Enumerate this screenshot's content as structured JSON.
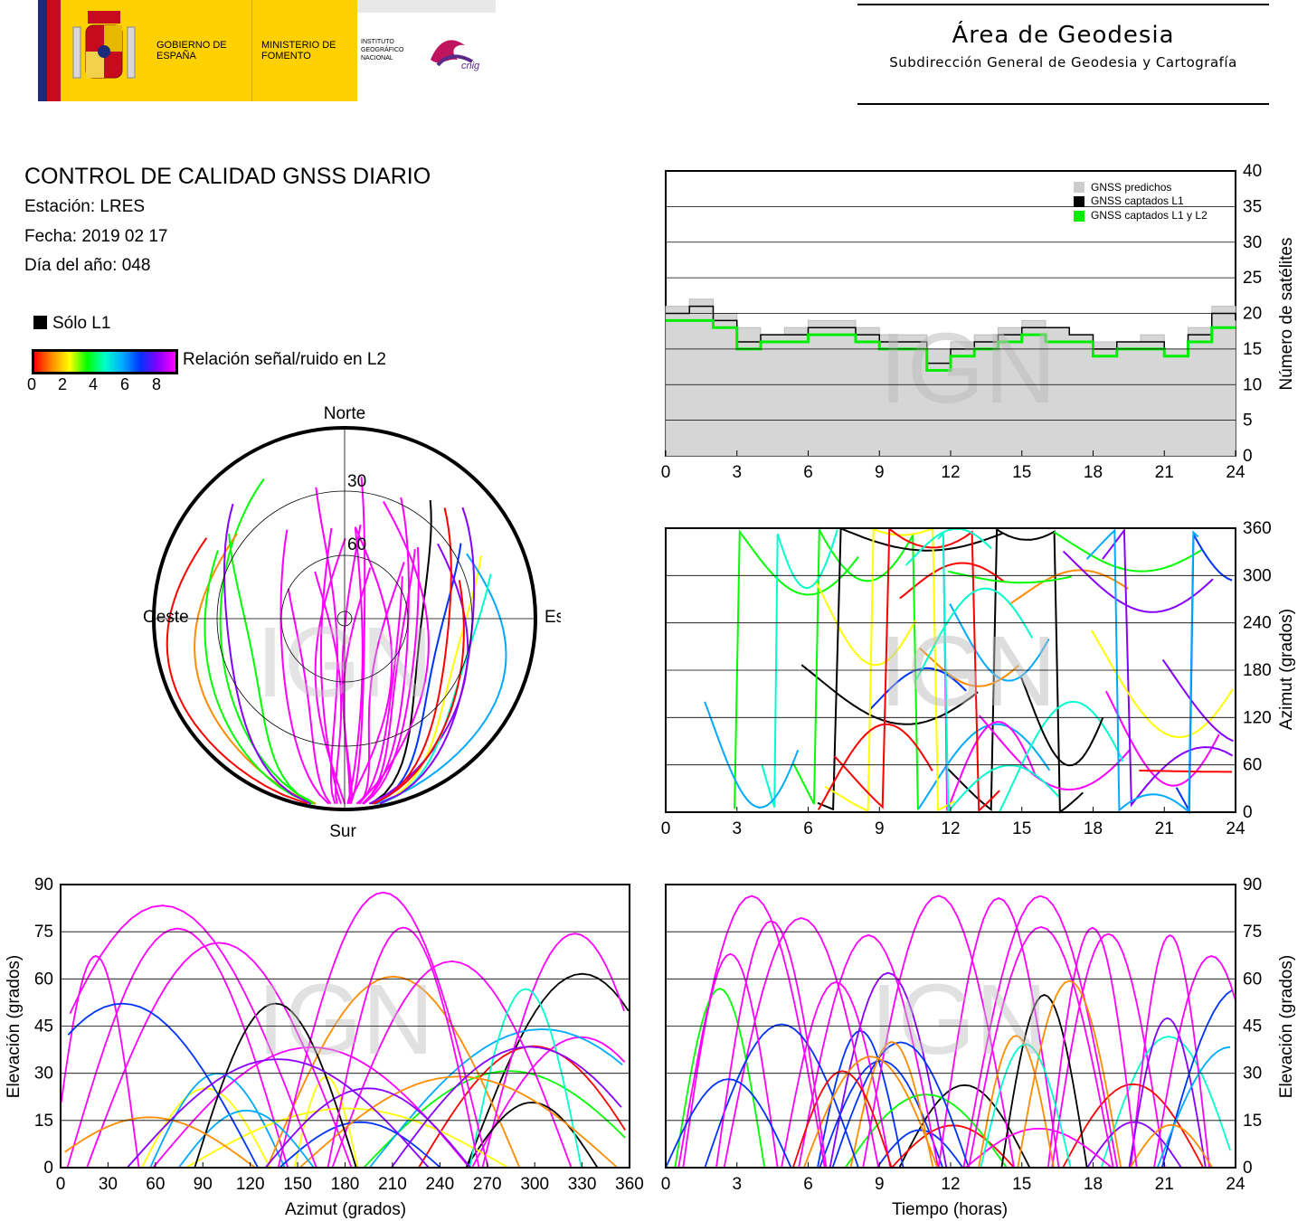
{
  "header": {
    "logos": {
      "gobierno": "GOBIERNO DE ESPAÑA",
      "ministerio": "MINISTERIO DE FOMENTO",
      "instituto": "INSTITUTO GEOGRÁFICO NACIONAL",
      "cnig": "cnig"
    },
    "area_title": "Área de Geodesia",
    "area_subtitle": "Subdirección General de Geodesia y Cartografía"
  },
  "report": {
    "title": "CONTROL DE CALIDAD GNSS DIARIO",
    "station": "Estación: LRES",
    "date": "Fecha: 2019 02 17",
    "doy": "Día del año: 048"
  },
  "legend": {
    "l1_only": "Sólo L1",
    "snr_label": "Relación señal/ruido en L2",
    "snr_ticks": [
      "0",
      "2",
      "4",
      "6",
      "8"
    ],
    "snr_colors": [
      "#ff0000",
      "#ff8c00",
      "#ffff00",
      "#00ff00",
      "#00ffcc",
      "#00aaff",
      "#0033ff",
      "#8800ff",
      "#ff00ff"
    ]
  },
  "watermark": "IGN",
  "chart_data": [
    {
      "type": "polar-skyplot",
      "directions": {
        "north": "Norte",
        "south": "Sur",
        "east": "Este",
        "west": "Oeste"
      },
      "ring_labels": [
        "30",
        "60"
      ],
      "elevation_rings": [
        0,
        30,
        60,
        90
      ]
    },
    {
      "type": "area",
      "ylabel": "Número de satélites",
      "ylim": [
        0,
        40
      ],
      "yticks": [
        "0",
        "5",
        "10",
        "15",
        "20",
        "25",
        "30",
        "35",
        "40"
      ],
      "xlim": [
        0,
        24
      ],
      "xticks": [
        "0",
        "3",
        "6",
        "9",
        "12",
        "15",
        "18",
        "21",
        "24"
      ],
      "legend": [
        "GNSS predichos",
        "GNSS captados L1",
        "GNSS captados L1 y L2"
      ],
      "legend_colors": [
        "#cccccc",
        "#000000",
        "#00ee00"
      ],
      "series": [
        {
          "name": "GNSS predichos",
          "x": [
            0,
            1,
            2,
            3,
            4,
            5,
            6,
            7,
            8,
            9,
            10,
            11,
            12,
            13,
            14,
            15,
            16,
            17,
            18,
            19,
            20,
            21,
            22,
            23,
            24
          ],
          "values": [
            21,
            22,
            20,
            18,
            17,
            18,
            19,
            19,
            18,
            17,
            17,
            15,
            16,
            17,
            18,
            19,
            18,
            17,
            16,
            16,
            17,
            15,
            18,
            21,
            20
          ]
        },
        {
          "name": "GNSS captados L1",
          "x": [
            0,
            1,
            2,
            3,
            4,
            5,
            6,
            7,
            8,
            9,
            10,
            11,
            12,
            13,
            14,
            15,
            16,
            17,
            18,
            19,
            20,
            21,
            22,
            23,
            24
          ],
          "values": [
            20,
            21,
            19,
            16,
            17,
            17,
            18,
            18,
            17,
            16,
            16,
            13,
            15,
            16,
            17,
            18,
            18,
            17,
            15,
            16,
            16,
            14,
            17,
            20,
            19
          ]
        },
        {
          "name": "GNSS captados L1 y L2",
          "x": [
            0,
            1,
            2,
            3,
            4,
            5,
            6,
            7,
            8,
            9,
            10,
            11,
            12,
            13,
            14,
            15,
            16,
            17,
            18,
            19,
            20,
            21,
            22,
            23,
            24
          ],
          "values": [
            19,
            19,
            18,
            15,
            16,
            16,
            17,
            17,
            16,
            15,
            15,
            12,
            14,
            15,
            16,
            17,
            16,
            16,
            14,
            15,
            15,
            14,
            16,
            18,
            18
          ]
        }
      ]
    },
    {
      "type": "scatter",
      "ylabel": "Azimut (grados)",
      "ylim": [
        0,
        360
      ],
      "yticks": [
        "0",
        "60",
        "120",
        "180",
        "240",
        "300",
        "360"
      ],
      "xlim": [
        0,
        24
      ],
      "xticks": [
        "0",
        "3",
        "6",
        "9",
        "12",
        "15",
        "18",
        "21",
        "24"
      ]
    },
    {
      "type": "scatter",
      "xlabel": "Azimut (grados)",
      "ylabel": "Elevación (grados)",
      "xlim": [
        0,
        360
      ],
      "xticks": [
        "0",
        "30",
        "60",
        "90",
        "120",
        "150",
        "180",
        "210",
        "240",
        "270",
        "300",
        "330",
        "360"
      ],
      "ylim": [
        0,
        90
      ],
      "yticks": [
        "0",
        "15",
        "30",
        "45",
        "60",
        "75",
        "90"
      ]
    },
    {
      "type": "scatter",
      "xlabel": "Tiempo (horas)",
      "ylabel": "Elevación (grados)",
      "xlim": [
        0,
        24
      ],
      "xticks": [
        "0",
        "3",
        "6",
        "9",
        "12",
        "15",
        "18",
        "21",
        "24"
      ],
      "ylim": [
        0,
        90
      ],
      "yticks": [
        "0",
        "15",
        "30",
        "45",
        "60",
        "75",
        "90"
      ]
    }
  ]
}
